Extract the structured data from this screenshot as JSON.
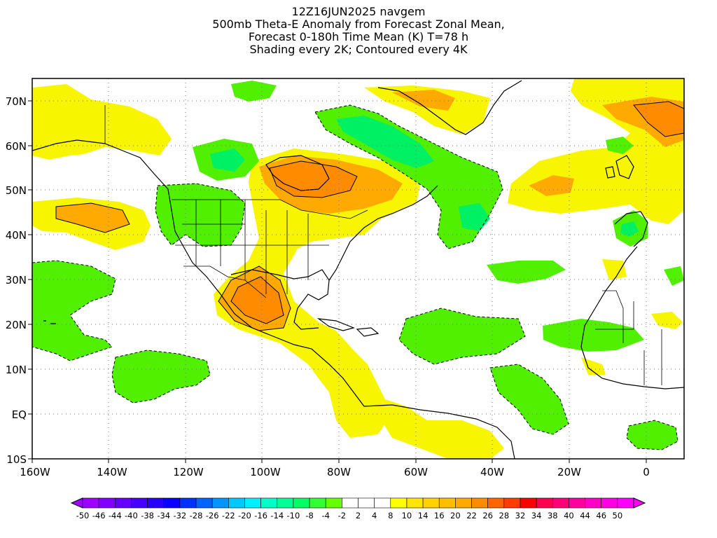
{
  "title": {
    "run": "12Z16JUN2025 navgem",
    "line2": "500mb Theta-E Anomaly from Forecast Zonal Mean,",
    "line3": "Forecast 0-180h Time Mean (K) T=78 h",
    "line4": "Shading every 2K; Contoured every 4K"
  },
  "map": {
    "lon_range": [
      -160,
      10
    ],
    "lat_range": [
      -10,
      75
    ],
    "lon_ticks": [
      "160W",
      "140W",
      "120W",
      "100W",
      "80W",
      "60W",
      "40W",
      "20W",
      "0"
    ],
    "lat_ticks": [
      "10S",
      "EQ",
      "10N",
      "20N",
      "30N",
      "40N",
      "50N",
      "60N",
      "70N"
    ],
    "gridlines": "dotted"
  },
  "colorbar": {
    "labels": [
      "-50",
      "-46",
      "-44",
      "-40",
      "-38",
      "-34",
      "-32",
      "-28",
      "-26",
      "-22",
      "-20",
      "-16",
      "-14",
      "-10",
      "-8",
      "-4",
      "-2",
      "2",
      "4",
      "8",
      "10",
      "14",
      "16",
      "20",
      "22",
      "26",
      "28",
      "32",
      "34",
      "38",
      "40",
      "44",
      "46",
      "50"
    ],
    "colors": [
      "#a000ff",
      "#8200ff",
      "#6400ff",
      "#4600ff",
      "#2800ff",
      "#0a00ff",
      "#0032ff",
      "#0064ff",
      "#0096ff",
      "#00c8ff",
      "#00f0ff",
      "#00ffc8",
      "#00ff96",
      "#00ff64",
      "#32ff32",
      "#64ff00",
      "#ffffff",
      "#ffffff",
      "#ffffff",
      "#ffff00",
      "#ffe600",
      "#ffd200",
      "#ffbe00",
      "#ffaa00",
      "#ff8c00",
      "#ff6400",
      "#ff3c00",
      "#ff0000",
      "#ff0050",
      "#ff0078",
      "#ff00a0",
      "#ff00c8",
      "#ff00e6",
      "#ff00ff"
    ]
  },
  "fields": {
    "positive_fill": "#f7f500",
    "positive_strong": "#ffd200",
    "positive_max": "#ffaa00",
    "positive_peak": "#ff8c00",
    "negative_fill": "#50f000",
    "negative_strong": "#00f064"
  }
}
